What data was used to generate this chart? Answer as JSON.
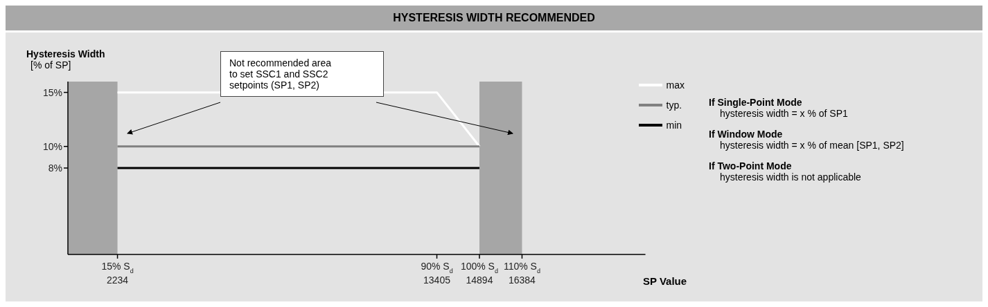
{
  "chart_data": {
    "type": "line",
    "title": "HYSTERESIS WIDTH RECOMMENDED",
    "xlabel": "SP Value",
    "ylabel": "Hysteresis Width\n[% of SP]",
    "xlim": [
      500,
      20700
    ],
    "ylim": [
      0,
      16
    ],
    "xticks": [
      2234,
      13405,
      14894,
      16384
    ],
    "yticks": [
      {
        "value": 8,
        "label": "8%"
      },
      {
        "value": 10,
        "label": "10%"
      },
      {
        "value": 15,
        "label": "15%"
      }
    ],
    "series": [
      {
        "name": "max",
        "color": "#ffffff",
        "x": [
          2234,
          13405,
          14894
        ],
        "values": [
          15,
          15,
          10
        ]
      },
      {
        "name": "typ.",
        "color": "#808080",
        "x": [
          2234,
          14894
        ],
        "values": [
          10,
          10
        ]
      },
      {
        "name": "min",
        "color": "#000000",
        "x": [
          2234,
          14894
        ],
        "values": [
          8,
          8
        ]
      }
    ],
    "bands": [
      {
        "axis": "x",
        "from": 500,
        "to": 2234,
        "color": "#a6a6a6"
      },
      {
        "axis": "x",
        "from": 14894,
        "to": 16384,
        "color": "#a6a6a6"
      }
    ],
    "annotations": [
      "Not recommended area\nto set SSC1 and SSC2\nsetpoints (SP1, SP2)",
      "If Single-Point Mode",
      "hysteresis width = x % of SP1",
      "If Window Mode",
      "hysteresis width = x % of mean [SP1, SP2]",
      "If Two-Point Mode",
      "hysteresis width is not applicable",
      "15% S$_{d}$",
      "90% S$_{d}$",
      "100% S$_{d}$",
      "110% S$_{d}$"
    ],
    "legend": "top right",
    "marker": "none",
    "line_style": "solid"
  }
}
